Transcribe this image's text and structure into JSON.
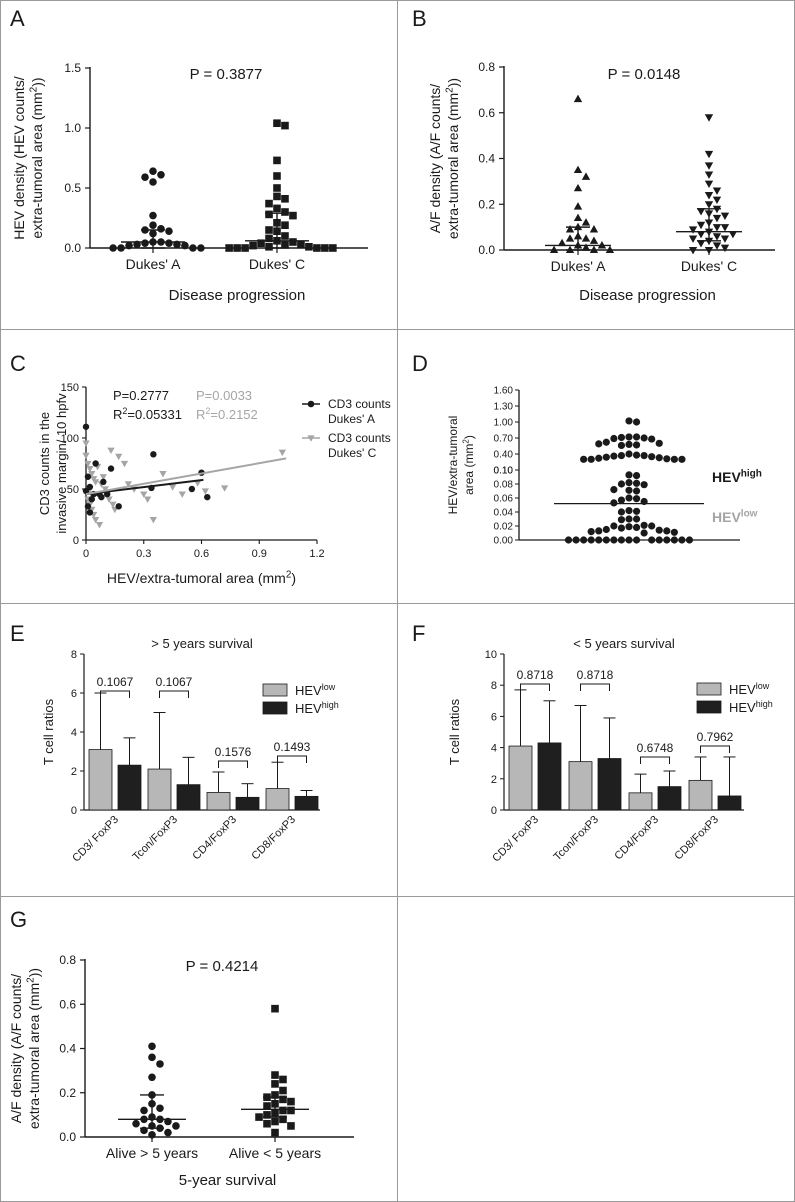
{
  "chart_data": [
    {
      "id": "A",
      "type": "scatter",
      "panel_label": "A",
      "annotation": "P = 0.3877",
      "ylabel_lines": [
        "HEV density (HEV counts/",
        "extra-tumoral area (mm²))"
      ],
      "xlabel": "Disease progression",
      "categories": [
        "Dukes' A",
        "Dukes' C"
      ],
      "ylim": [
        0,
        1.5
      ],
      "yticks": [
        0.0,
        0.5,
        1.0,
        1.5
      ],
      "tick_decimals": 1,
      "groups": [
        {
          "name": "Dukes' A",
          "marker": "circle",
          "median": 0.05,
          "iqr": [
            0.0,
            0.15
          ],
          "values": [
            0.64,
            0.61,
            0.59,
            0.55,
            0.27,
            0.19,
            0.16,
            0.15,
            0.14,
            0.12,
            0.05,
            0.05,
            0.04,
            0.04,
            0.03,
            0.03,
            0.02,
            0.02,
            0.0,
            0.0,
            0.0,
            0.0
          ]
        },
        {
          "name": "Dukes' C",
          "marker": "square",
          "median": 0.06,
          "iqr": [
            0.0,
            0.29
          ],
          "values": [
            1.04,
            1.02,
            0.73,
            0.6,
            0.5,
            0.43,
            0.41,
            0.37,
            0.33,
            0.3,
            0.28,
            0.27,
            0.21,
            0.19,
            0.15,
            0.14,
            0.1,
            0.08,
            0.06,
            0.05,
            0.04,
            0.03,
            0.03,
            0.02,
            0.01,
            0.01,
            0.0,
            0.0,
            0.0,
            0.0,
            0.0,
            0.0
          ]
        }
      ]
    },
    {
      "id": "B",
      "type": "scatter",
      "panel_label": "B",
      "annotation": "P = 0.0148",
      "ylabel_lines": [
        "A/F density (A/F counts/",
        "extra-tumoral area (mm²))"
      ],
      "xlabel": "Disease progression",
      "categories": [
        "Dukes' A",
        "Dukes' C"
      ],
      "ylim": [
        0,
        0.8
      ],
      "yticks": [
        0.0,
        0.2,
        0.4,
        0.6,
        0.8
      ],
      "tick_decimals": 1,
      "groups": [
        {
          "name": "Dukes' A",
          "marker": "triangle-up",
          "median": 0.02,
          "iqr": [
            0.0,
            0.1
          ],
          "values": [
            0.66,
            0.35,
            0.32,
            0.27,
            0.19,
            0.14,
            0.12,
            0.1,
            0.09,
            0.09,
            0.06,
            0.05,
            0.05,
            0.04,
            0.03,
            0.02,
            0.02,
            0.01,
            0.0,
            0.0,
            0.0,
            0.0
          ]
        },
        {
          "name": "Dukes' C",
          "marker": "triangle-down",
          "median": 0.08,
          "iqr": [
            0.04,
            0.18
          ],
          "values": [
            0.58,
            0.42,
            0.37,
            0.33,
            0.29,
            0.26,
            0.24,
            0.22,
            0.2,
            0.18,
            0.17,
            0.16,
            0.15,
            0.14,
            0.12,
            0.11,
            0.1,
            0.1,
            0.09,
            0.08,
            0.07,
            0.07,
            0.06,
            0.05,
            0.05,
            0.04,
            0.03,
            0.02,
            0.01,
            0.0,
            0.0
          ]
        }
      ]
    },
    {
      "id": "C",
      "type": "scatter",
      "panel_label": "C",
      "ylabel_lines": [
        "CD3 counts in the",
        "invasive margin/ 10 hpfv"
      ],
      "xlabel": "HEV/extra-tumoral area (mm²)",
      "xlim": [
        0,
        1.2
      ],
      "xticks": [
        0.0,
        0.3,
        0.6,
        0.9,
        1.2
      ],
      "ylim": [
        0,
        150
      ],
      "yticks": [
        0,
        50,
        100,
        150
      ],
      "stats": [
        {
          "p": "P=0.2777",
          "r2": "R²=0.05331",
          "color": "#1a1a1a"
        },
        {
          "p": "P=0.0033",
          "r2": "R²=0.2152",
          "color": "#a5a5a5"
        }
      ],
      "series": [
        {
          "name": "CD3 counts Dukes' A",
          "legend_lines": [
            "CD3 counts",
            "Dukes' A"
          ],
          "marker": "circle",
          "color": "#1a1a1a",
          "fit": {
            "x": [
              0.0,
              0.61
            ],
            "y": [
              45,
              59
            ]
          },
          "points": [
            [
              0.0,
              111
            ],
            [
              0.01,
              62
            ],
            [
              0.02,
              52
            ],
            [
              0.0,
              48
            ],
            [
              0.03,
              40
            ],
            [
              0.01,
              33
            ],
            [
              0.02,
              27
            ],
            [
              0.05,
              75
            ],
            [
              0.09,
              57
            ],
            [
              0.07,
              45
            ],
            [
              0.08,
              42
            ],
            [
              0.11,
              45
            ],
            [
              0.13,
              70
            ],
            [
              0.17,
              33
            ],
            [
              0.35,
              84
            ],
            [
              0.34,
              51
            ],
            [
              0.55,
              50
            ],
            [
              0.6,
              66
            ],
            [
              0.63,
              42
            ],
            [
              0.04,
              45
            ]
          ]
        },
        {
          "name": "CD3 counts Dukes' C",
          "legend_lines": [
            "CD3 counts",
            "Dukes' C"
          ],
          "marker": "triangle-down",
          "color": "#a5a5a5",
          "fit": {
            "x": [
              0.0,
              1.04
            ],
            "y": [
              45,
              80
            ]
          },
          "points": [
            [
              0.0,
              95
            ],
            [
              0.0,
              83
            ],
            [
              0.01,
              75
            ],
            [
              0.02,
              70
            ],
            [
              0.03,
              65
            ],
            [
              0.04,
              60
            ],
            [
              0.05,
              57
            ],
            [
              0.02,
              50
            ],
            [
              0.03,
              45
            ],
            [
              0.01,
              40
            ],
            [
              0.02,
              35
            ],
            [
              0.03,
              30
            ],
            [
              0.04,
              25
            ],
            [
              0.05,
              20
            ],
            [
              0.07,
              15
            ],
            [
              0.08,
              55
            ],
            [
              0.1,
              50
            ],
            [
              0.11,
              45
            ],
            [
              0.12,
              40
            ],
            [
              0.14,
              35
            ],
            [
              0.15,
              30
            ],
            [
              0.17,
              82
            ],
            [
              0.2,
              75
            ],
            [
              0.22,
              55
            ],
            [
              0.25,
              50
            ],
            [
              0.3,
              45
            ],
            [
              0.32,
              40
            ],
            [
              0.35,
              20
            ],
            [
              0.4,
              65
            ],
            [
              0.45,
              52
            ],
            [
              0.5,
              45
            ],
            [
              0.58,
              56
            ],
            [
              0.62,
              48
            ],
            [
              0.72,
              51
            ],
            [
              1.02,
              86
            ],
            [
              0.06,
              72
            ],
            [
              0.09,
              62
            ],
            [
              0.13,
              88
            ]
          ]
        }
      ]
    },
    {
      "id": "D",
      "type": "scatter",
      "panel_label": "D",
      "ylabel_lines": [
        "HEV/extra-tumoral",
        "area (mm²)"
      ],
      "yticks_upper": [
        0.1,
        0.4,
        0.7,
        1.0,
        1.3,
        1.6
      ],
      "yticks_lower": [
        0.0,
        0.02,
        0.04,
        0.06,
        0.08,
        0.1
      ],
      "cutoff": 0.052,
      "label_high": "HEV",
      "label_high_sup": "high",
      "label_low": "HEV",
      "label_low_sup": "low",
      "values": [
        1.02,
        1.0,
        0.72,
        0.72,
        0.71,
        0.7,
        0.69,
        0.68,
        0.62,
        0.6,
        0.59,
        0.58,
        0.57,
        0.56,
        0.4,
        0.38,
        0.37,
        0.37,
        0.36,
        0.35,
        0.34,
        0.33,
        0.32,
        0.31,
        0.3,
        0.3,
        0.3,
        0.3,
        0.093,
        0.092,
        0.082,
        0.081,
        0.08,
        0.079,
        0.072,
        0.071,
        0.07,
        0.06,
        0.059,
        0.057,
        0.055,
        0.053,
        0.042,
        0.041,
        0.04,
        0.03,
        0.03,
        0.029,
        0.021,
        0.02,
        0.02,
        0.019,
        0.018,
        0.017,
        0.015,
        0.014,
        0.013,
        0.013,
        0.012,
        0.011,
        0.01,
        0.0,
        0.0,
        0.0,
        0.0,
        0.0,
        0.0,
        0.0,
        0.0,
        0.0,
        0.0,
        0.0,
        0.0,
        0.0,
        0.0,
        0.0,
        0.0
      ]
    },
    {
      "id": "E",
      "type": "bar",
      "panel_label": "E",
      "title": "> 5 years survival",
      "ylabel": "T cell ratios",
      "ylim": [
        0,
        8
      ],
      "yticks": [
        0,
        2,
        4,
        6,
        8
      ],
      "categories": [
        "CD3/ FoxP3",
        "Tcon/FoxP3",
        "CD4/FoxP3",
        "CD8/FoxP3"
      ],
      "series": [
        {
          "name": "HEV",
          "sup": "low",
          "fill": "#b7b7b7",
          "values": [
            3.1,
            2.1,
            0.9,
            1.1
          ],
          "errors": [
            2.9,
            2.9,
            1.05,
            1.35
          ]
        },
        {
          "name": "HEV",
          "sup": "high",
          "fill": "#1f1f1f",
          "values": [
            2.3,
            1.3,
            0.65,
            0.7
          ],
          "errors": [
            1.4,
            1.4,
            0.7,
            0.3
          ]
        }
      ],
      "pvalues": [
        "0.1067",
        "0.1067",
        "0.1576",
        "0.1493"
      ]
    },
    {
      "id": "F",
      "type": "bar",
      "panel_label": "F",
      "title": "< 5 years survival",
      "ylabel": "T cell ratios",
      "ylim": [
        0,
        10
      ],
      "yticks": [
        0,
        2,
        4,
        6,
        8,
        10
      ],
      "categories": [
        "CD3/ FoxP3",
        "Tcon/FoxP3",
        "CD4/FoxP3",
        "CD8/FoxP3"
      ],
      "series": [
        {
          "name": "HEV",
          "sup": "low",
          "fill": "#b7b7b7",
          "values": [
            4.1,
            3.1,
            1.1,
            1.9
          ],
          "errors": [
            3.6,
            3.6,
            1.2,
            1.5
          ]
        },
        {
          "name": "HEV",
          "sup": "high",
          "fill": "#1f1f1f",
          "values": [
            4.3,
            3.3,
            1.5,
            0.9
          ],
          "errors": [
            2.7,
            2.6,
            1.0,
            2.5
          ]
        }
      ],
      "pvalues": [
        "0.8718",
        "0.8718",
        "0.6748",
        "0.7962"
      ]
    },
    {
      "id": "G",
      "type": "scatter",
      "panel_label": "G",
      "annotation": "P =  0.4214",
      "ylabel_lines": [
        "A/F density (A/F counts/",
        "extra-tumoral area (mm²))"
      ],
      "xlabel": "5-year survival",
      "categories": [
        "Alive > 5 years",
        "Alive < 5 years"
      ],
      "ylim": [
        0,
        0.8
      ],
      "yticks": [
        0.0,
        0.2,
        0.4,
        0.6,
        0.8
      ],
      "tick_decimals": 1,
      "groups": [
        {
          "name": "Alive > 5 years",
          "marker": "circle",
          "median": 0.08,
          "iqr": [
            0.04,
            0.19
          ],
          "values": [
            0.41,
            0.36,
            0.33,
            0.27,
            0.19,
            0.15,
            0.13,
            0.12,
            0.09,
            0.08,
            0.08,
            0.07,
            0.06,
            0.05,
            0.05,
            0.04,
            0.03,
            0.02,
            0.01
          ]
        },
        {
          "name": "Alive < 5 years",
          "marker": "square",
          "median": 0.125,
          "iqr": [
            0.09,
            0.18
          ],
          "values": [
            0.58,
            0.28,
            0.26,
            0.24,
            0.21,
            0.19,
            0.18,
            0.17,
            0.16,
            0.15,
            0.14,
            0.12,
            0.12,
            0.11,
            0.1,
            0.09,
            0.08,
            0.07,
            0.06,
            0.05,
            0.02
          ]
        }
      ]
    }
  ]
}
